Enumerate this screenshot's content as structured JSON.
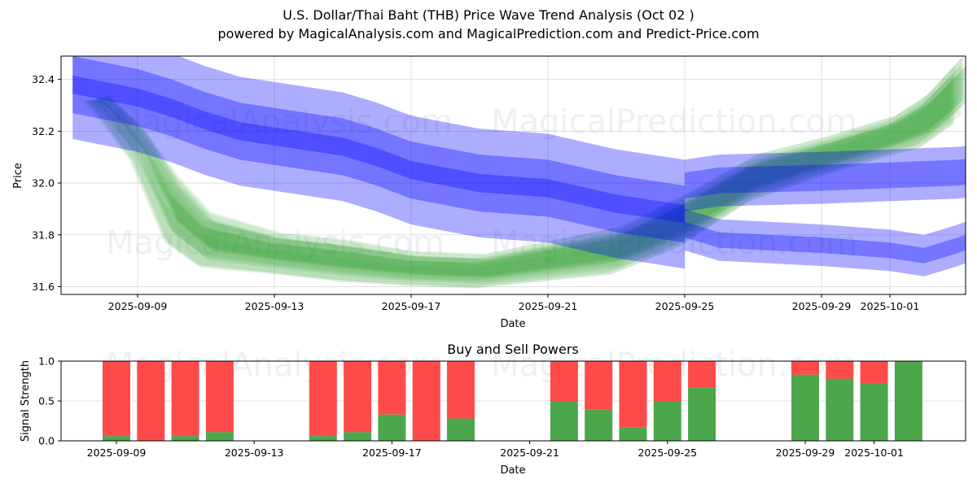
{
  "header": {
    "title": "U.S. Dollar/Thai Baht (THB) Price Wave Trend Analysis (Oct 02 )",
    "subtitle": "powered by MagicalAnalysis.com and MagicalPrediction.com and Predict-Price.com"
  },
  "watermarks": [
    "MagicalAnalysis.com",
    "MagicalPrediction.com"
  ],
  "colors": {
    "blue": "#0000ff",
    "green": "#2ca02c",
    "buy": "#4ca64c",
    "sell": "#ff4a4a",
    "grid": "#d9d9d9"
  },
  "chart_data": [
    {
      "type": "area",
      "title": "",
      "xlabel": "Date",
      "ylabel": "Price",
      "ylim": [
        31.57,
        32.49
      ],
      "xlim_dates": [
        "2025-09-06",
        "2025-10-03"
      ],
      "grid": true,
      "x_ticks": [
        "2025-09-09",
        "2025-09-13",
        "2025-09-17",
        "2025-09-21",
        "2025-09-25",
        "2025-09-29",
        "2025-10-01"
      ],
      "y_ticks": [
        "31.6",
        "31.8",
        "32.0",
        "32.2",
        "32.4"
      ],
      "series": [
        {
          "name": "blue-trend-band",
          "color": "blue",
          "x_days_from_2025_09_09": [
            -1.9,
            0,
            1,
            2,
            3,
            4,
            6,
            7,
            8,
            10,
            12,
            13,
            14,
            15,
            16
          ],
          "center": [
            32.38,
            32.33,
            32.29,
            32.24,
            32.2,
            32.18,
            32.14,
            32.1,
            32.05,
            32.0,
            31.98,
            31.95,
            31.92,
            31.9,
            31.88
          ],
          "half_widths": [
            0.035,
            0.11,
            0.21
          ]
        },
        {
          "name": "blue-upper-branch",
          "color": "blue",
          "x_days_from_2025_09_09": [
            16,
            17,
            20,
            22,
            24,
            26
          ],
          "center": [
            31.99,
            32.01,
            32.02,
            32.03,
            32.04,
            32.07
          ],
          "half_widths": [
            0.05,
            0.1
          ]
        },
        {
          "name": "blue-lower-branch",
          "color": "blue",
          "x_days_from_2025_09_09": [
            16,
            17,
            20,
            22,
            23,
            24,
            26
          ],
          "center": [
            31.82,
            31.78,
            31.76,
            31.74,
            31.72,
            31.76,
            31.86
          ],
          "half_widths": [
            0.03,
            0.08
          ]
        },
        {
          "name": "green-wave-fan",
          "color": "green",
          "x_days_from_2025_09_09": [
            -1.4,
            -1,
            0,
            1,
            2,
            4,
            6,
            8,
            10,
            12,
            14,
            16,
            18,
            20,
            22,
            23,
            24
          ],
          "center": [
            32.32,
            32.3,
            32.15,
            31.9,
            31.78,
            31.73,
            31.7,
            31.67,
            31.66,
            31.7,
            31.74,
            31.86,
            32.02,
            32.1,
            32.18,
            32.24,
            32.36
          ],
          "spread": [
            0.0,
            0.03,
            0.05,
            0.1,
            0.08,
            0.06,
            0.06,
            0.05,
            0.05,
            0.06,
            0.07,
            0.08,
            0.07,
            0.06,
            0.06,
            0.08,
            0.1
          ]
        }
      ]
    },
    {
      "type": "bar",
      "title": "Buy and Sell Powers",
      "xlabel": "Date",
      "ylabel": "Signal Strength",
      "ylim": [
        0,
        1.0
      ],
      "grid": true,
      "x_ticks": [
        "2025-09-09",
        "2025-09-13",
        "2025-09-17",
        "2025-09-21",
        "2025-09-25",
        "2025-09-29",
        "2025-10-01"
      ],
      "y_ticks": [
        "0.0",
        "0.5",
        "1.0"
      ],
      "categories": [
        "2025-09-09",
        "2025-09-10",
        "2025-09-11",
        "2025-09-12",
        "2025-09-15",
        "2025-09-16",
        "2025-09-17",
        "2025-09-18",
        "2025-09-19",
        "2025-09-22",
        "2025-09-23",
        "2025-09-24",
        "2025-09-25",
        "2025-09-26",
        "2025-09-29",
        "2025-09-30",
        "2025-10-01",
        "2025-10-02"
      ],
      "series": [
        {
          "name": "Buy",
          "color": "buy",
          "values": [
            0.06,
            0.0,
            0.06,
            0.11,
            0.06,
            0.11,
            0.33,
            0.0,
            0.28,
            0.5,
            0.39,
            0.17,
            0.5,
            0.67,
            0.83,
            0.78,
            0.72,
            1.0
          ]
        },
        {
          "name": "Sell",
          "color": "sell",
          "values": [
            0.94,
            1.0,
            0.94,
            0.89,
            0.94,
            0.89,
            0.67,
            1.0,
            0.72,
            0.5,
            0.61,
            0.83,
            0.5,
            0.33,
            0.17,
            0.22,
            0.28,
            0.0
          ]
        }
      ]
    }
  ]
}
